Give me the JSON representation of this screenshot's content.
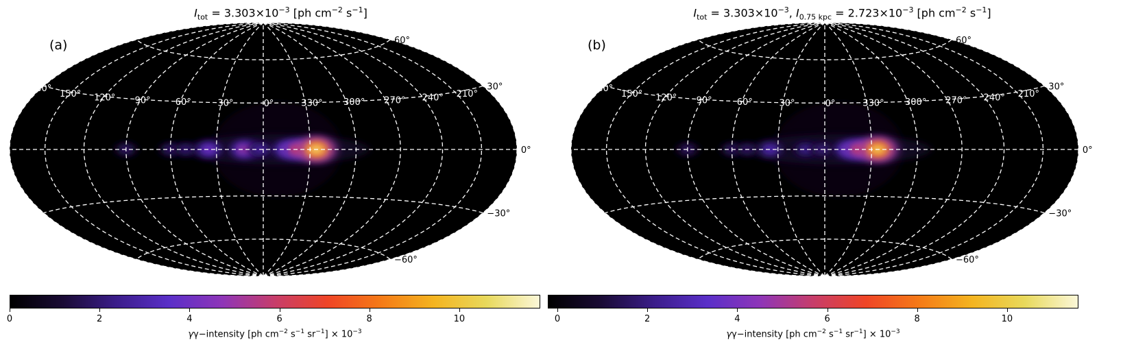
{
  "colors": {
    "map_background": "#000000",
    "grid": "#ffffff",
    "colormap": [
      "#000000",
      "#1a0b35",
      "#3b1d8a",
      "#5a2fc8",
      "#8e35b8",
      "#c73d6a",
      "#ef4526",
      "#f57a17",
      "#f4b420",
      "#e8d95c",
      "#fbf7d8"
    ]
  },
  "chart_data": [
    {
      "type": "heatmap",
      "projection": "hammer-aitoff",
      "panel_label": "(a)",
      "title_parts": {
        "symbol": "I",
        "sub": "tot",
        "value": " = 3.303×10",
        "exp": "−3",
        "units_a": " [ph cm",
        "units_exp1": "−2",
        "units_b": " s",
        "units_exp2": "−1",
        "units_c": "]"
      },
      "longitude_labels": [
        "180°",
        "150°",
        "120°",
        "90°",
        "60°",
        "30°",
        "0°",
        "330°",
        "300°",
        "270°",
        "240°",
        "210°"
      ],
      "latitude_labels": [
        "60°",
        "30°",
        "0°",
        "−30°",
        "−60°"
      ],
      "grid": true,
      "colorbar": {
        "range": [
          0,
          11.8
        ],
        "ticks": [
          0,
          2,
          4,
          6,
          8,
          10
        ],
        "tick_labels": [
          "0",
          "2",
          "4",
          "6",
          "8",
          "10"
        ],
        "label_prefix": "γ−intensity [ph cm",
        "label_exp1": "−2",
        "label_mid1": " s",
        "label_exp2": "−1",
        "label_mid2": " sr",
        "label_exp3": "−1",
        "label_mid3": "] × 10",
        "label_exp4": "−3"
      },
      "sources": [
        {
          "lon": 90,
          "lat": 0,
          "intensity": 2.2
        },
        {
          "lon": 60,
          "lat": 0,
          "intensity": 2.3
        },
        {
          "lon": 50,
          "lat": 0,
          "intensity": 2.4
        },
        {
          "lon": 35,
          "lat": 0,
          "intensity": 4.5
        },
        {
          "lon": 12,
          "lat": 0,
          "intensity": 5.5
        },
        {
          "lon": 2,
          "lat": 0,
          "intensity": 3.2
        },
        {
          "lon": 345,
          "lat": 0,
          "intensity": 5.0
        },
        {
          "lon": 338,
          "lat": 0,
          "intensity": 7.0
        },
        {
          "lon": 326,
          "lat": 0,
          "intensity": 11.0
        }
      ]
    },
    {
      "type": "heatmap",
      "projection": "hammer-aitoff",
      "panel_label": "(b)",
      "title_parts": {
        "symbol": "I",
        "sub": "tot",
        "value": " = 3.303×10",
        "exp": "−3",
        "sep": ", ",
        "symbol2": "I",
        "sub2": "0.75 kpc",
        "value2": " = 2.723×10",
        "exp2": "−3",
        "units_a": " [ph cm",
        "units_exp1": "−2",
        "units_b": " s",
        "units_exp2": "−1",
        "units_c": "]"
      },
      "longitude_labels": [
        "180°",
        "150°",
        "120°",
        "90°",
        "60°",
        "30°",
        "0°",
        "330°",
        "300°",
        "270°",
        "240°",
        "210°"
      ],
      "latitude_labels": [
        "60°",
        "30°",
        "0°",
        "−30°",
        "−60°"
      ],
      "grid": true,
      "colorbar": {
        "range": [
          0,
          11.8
        ],
        "ticks": [
          0,
          2,
          4,
          6,
          8,
          10
        ],
        "tick_labels": [
          "0",
          "2",
          "4",
          "6",
          "8",
          "10"
        ],
        "label_prefix": "γ−intensity [ph cm",
        "label_exp1": "−2",
        "label_mid1": " s",
        "label_exp2": "−1",
        "label_mid2": " sr",
        "label_exp3": "−1",
        "label_mid3": "] × 10",
        "label_exp4": "−3"
      },
      "sources": [
        {
          "lon": 90,
          "lat": 0,
          "intensity": 2.1
        },
        {
          "lon": 60,
          "lat": 0,
          "intensity": 2.2
        },
        {
          "lon": 50,
          "lat": 0,
          "intensity": 2.2
        },
        {
          "lon": 35,
          "lat": 0,
          "intensity": 3.6
        },
        {
          "lon": 12,
          "lat": 0,
          "intensity": 3.0
        },
        {
          "lon": 2,
          "lat": 0,
          "intensity": 2.6
        },
        {
          "lon": 345,
          "lat": 0,
          "intensity": 5.0
        },
        {
          "lon": 338,
          "lat": 0,
          "intensity": 7.0
        },
        {
          "lon": 326,
          "lat": 0,
          "intensity": 10.8
        }
      ]
    }
  ]
}
